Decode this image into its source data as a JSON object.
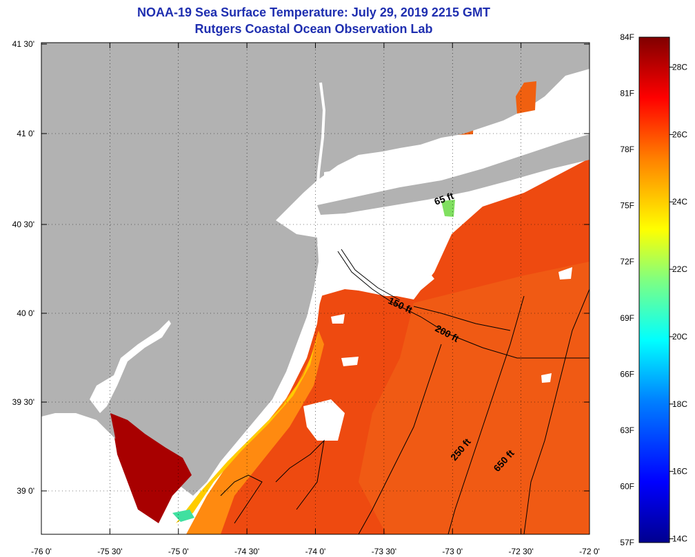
{
  "title": {
    "line1": "NOAA-19 Sea Surface Temperature:  July 29, 2019 2215 GMT",
    "line2": "Rutgers Coastal Ocean Observation Lab"
  },
  "axes": {
    "lon_labels": [
      "-76 0'",
      "-75 30'",
      "-75 0'",
      "-74 30'",
      "-74 0'",
      "-73 30'",
      "-73 0'",
      "-72 30'",
      "-72 0'"
    ],
    "lat_labels": [
      "41 30'",
      "41 0'",
      "40 30'",
      "40 0'",
      "39 30'",
      "39 0'"
    ]
  },
  "isobaths": [
    {
      "label": "65 ft"
    },
    {
      "label": "150 ft"
    },
    {
      "label": "200 ft"
    },
    {
      "label": "250 ft"
    },
    {
      "label": "650 ft"
    }
  ],
  "colorbar": {
    "fahrenheit_labels": [
      "84F",
      "81F",
      "78F",
      "75F",
      "72F",
      "69F",
      "66F",
      "63F",
      "60F",
      "57F"
    ],
    "celsius_labels": [
      "28C",
      "26C",
      "24C",
      "22C",
      "20C",
      "18C",
      "16C",
      "14C"
    ],
    "min_f": 57,
    "max_f": 84
  },
  "colors": {
    "land": "#b2b2b2",
    "cloud": "#ffffff",
    "title": "#1f2fb0",
    "sst_warm": "#ee4a10",
    "sst_hot": "#a80000",
    "sst_cool": "#ffd000"
  }
}
